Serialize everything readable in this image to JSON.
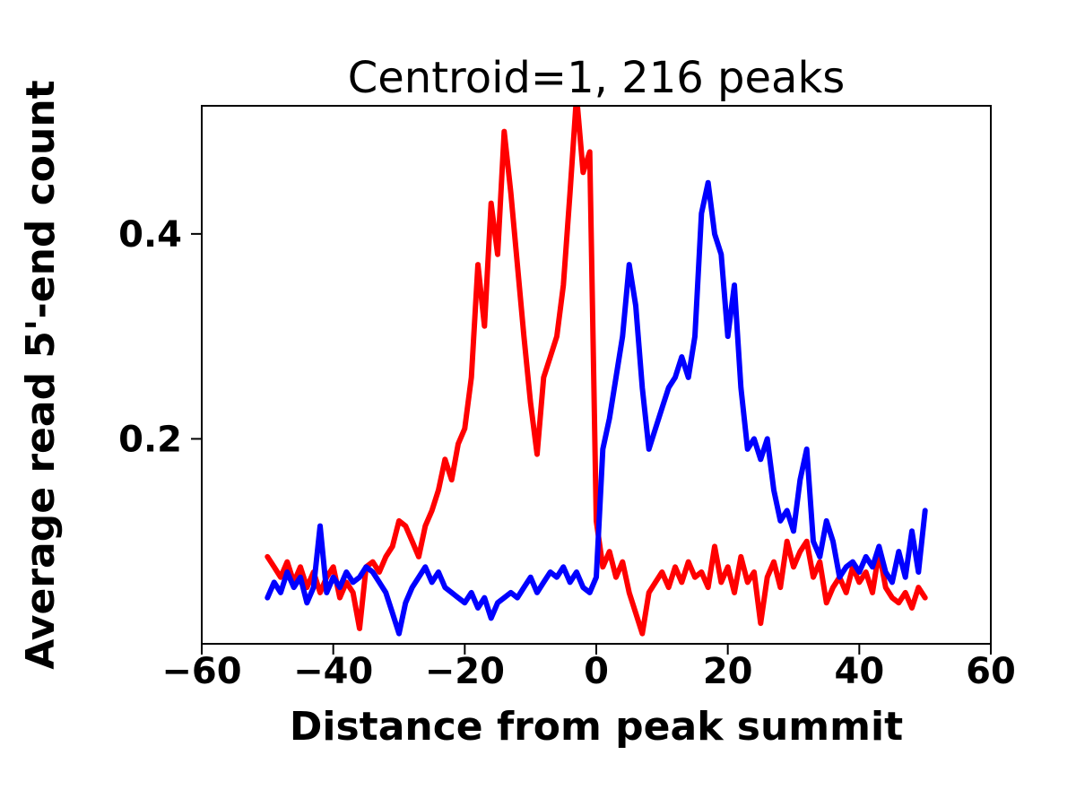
{
  "page": {
    "background": "#ffffff"
  },
  "chart_data": {
    "type": "line",
    "title": "Centroid=1, 216 peaks",
    "xlabel": "Distance from peak summit",
    "ylabel": "Average read 5'-end count",
    "xlim": [
      -60,
      60
    ],
    "ylim": [
      0,
      0.525
    ],
    "xticks": [
      -60,
      -40,
      -20,
      0,
      20,
      40,
      60
    ],
    "yticks": [
      0.2,
      0.4
    ],
    "grid": false,
    "legend": "none",
    "x": [
      -50,
      -49,
      -48,
      -47,
      -46,
      -45,
      -44,
      -43,
      -42,
      -41,
      -40,
      -39,
      -38,
      -37,
      -36,
      -35,
      -34,
      -33,
      -32,
      -31,
      -30,
      -29,
      -28,
      -27,
      -26,
      -25,
      -24,
      -23,
      -22,
      -21,
      -20,
      -19,
      -18,
      -17,
      -16,
      -15,
      -14,
      -13,
      -12,
      -11,
      -10,
      -9,
      -8,
      -7,
      -6,
      -5,
      -4,
      -3,
      -2,
      -1,
      0,
      1,
      2,
      3,
      4,
      5,
      6,
      7,
      8,
      9,
      10,
      11,
      12,
      13,
      14,
      15,
      16,
      17,
      18,
      19,
      20,
      21,
      22,
      23,
      24,
      25,
      26,
      27,
      28,
      29,
      30,
      31,
      32,
      33,
      34,
      35,
      36,
      37,
      38,
      39,
      40,
      41,
      42,
      43,
      44,
      45,
      46,
      47,
      48,
      49,
      50
    ],
    "series": [
      {
        "name": "series-red",
        "color": "#ff0000",
        "values": [
          0.085,
          0.075,
          0.065,
          0.08,
          0.06,
          0.075,
          0.055,
          0.07,
          0.05,
          0.065,
          0.075,
          0.045,
          0.06,
          0.05,
          0.015,
          0.075,
          0.08,
          0.07,
          0.085,
          0.095,
          0.12,
          0.115,
          0.1,
          0.085,
          0.115,
          0.13,
          0.15,
          0.18,
          0.16,
          0.195,
          0.21,
          0.26,
          0.37,
          0.31,
          0.43,
          0.38,
          0.5,
          0.44,
          0.37,
          0.3,
          0.235,
          0.185,
          0.26,
          0.28,
          0.3,
          0.35,
          0.44,
          0.535,
          0.46,
          0.48,
          0.12,
          0.075,
          0.09,
          0.065,
          0.08,
          0.05,
          0.03,
          0.01,
          0.05,
          0.06,
          0.07,
          0.055,
          0.075,
          0.06,
          0.08,
          0.065,
          0.07,
          0.055,
          0.095,
          0.06,
          0.075,
          0.05,
          0.085,
          0.06,
          0.07,
          0.02,
          0.065,
          0.08,
          0.055,
          0.1,
          0.075,
          0.09,
          0.1,
          0.065,
          0.08,
          0.04,
          0.055,
          0.065,
          0.05,
          0.075,
          0.06,
          0.07,
          0.05,
          0.09,
          0.055,
          0.045,
          0.04,
          0.05,
          0.035,
          0.055,
          0.045
        ]
      },
      {
        "name": "series-blue",
        "color": "#0000ff",
        "values": [
          0.045,
          0.06,
          0.05,
          0.07,
          0.055,
          0.065,
          0.04,
          0.055,
          0.115,
          0.05,
          0.065,
          0.055,
          0.07,
          0.06,
          0.065,
          0.075,
          0.07,
          0.06,
          0.05,
          0.03,
          0.01,
          0.04,
          0.055,
          0.065,
          0.075,
          0.06,
          0.07,
          0.055,
          0.05,
          0.045,
          0.04,
          0.05,
          0.035,
          0.045,
          0.025,
          0.04,
          0.045,
          0.05,
          0.045,
          0.055,
          0.065,
          0.05,
          0.06,
          0.07,
          0.065,
          0.075,
          0.06,
          0.07,
          0.055,
          0.05,
          0.065,
          0.19,
          0.22,
          0.26,
          0.3,
          0.37,
          0.33,
          0.25,
          0.19,
          0.21,
          0.23,
          0.25,
          0.26,
          0.28,
          0.26,
          0.3,
          0.42,
          0.45,
          0.4,
          0.38,
          0.3,
          0.35,
          0.25,
          0.19,
          0.2,
          0.18,
          0.2,
          0.15,
          0.12,
          0.13,
          0.11,
          0.16,
          0.19,
          0.1,
          0.085,
          0.12,
          0.1,
          0.065,
          0.075,
          0.08,
          0.07,
          0.085,
          0.075,
          0.095,
          0.07,
          0.06,
          0.09,
          0.065,
          0.11,
          0.07,
          0.13
        ]
      }
    ]
  }
}
